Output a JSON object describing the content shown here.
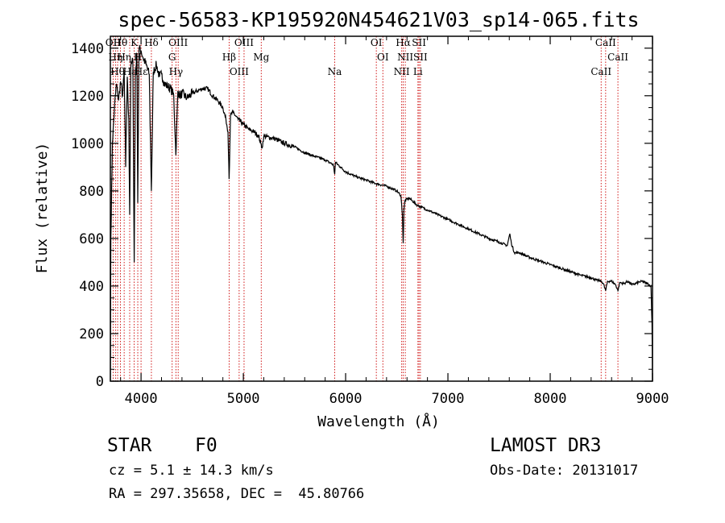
{
  "chart_data": {
    "type": "line",
    "title": "spec-56583-KP195920N454621V03_sp14-065.fits",
    "xlabel": "Wavelength (Å)",
    "ylabel": "Flux (relative)",
    "xlim": [
      3700,
      9000
    ],
    "ylim": [
      0,
      1450
    ],
    "xticks": [
      4000,
      5000,
      6000,
      7000,
      8000,
      9000
    ],
    "yticks": [
      0,
      200,
      400,
      600,
      800,
      1000,
      1200,
      1400
    ],
    "series": [
      {
        "name": "spectrum",
        "x": [
          3700,
          3705,
          3720,
          3740,
          3760,
          3780,
          3800,
          3820,
          3835,
          3850,
          3865,
          3880,
          3889,
          3900,
          3920,
          3933,
          3945,
          3960,
          3968,
          3980,
          4000,
          4020,
          4050,
          4080,
          4101,
          4120,
          4150,
          4180,
          4200,
          4230,
          4260,
          4290,
          4320,
          4340,
          4360,
          4380,
          4400,
          4450,
          4500,
          4550,
          4600,
          4650,
          4700,
          4750,
          4800,
          4830,
          4850,
          4861,
          4875,
          4900,
          4950,
          5000,
          5050,
          5100,
          5150,
          5170,
          5183,
          5200,
          5300,
          5400,
          5500,
          5600,
          5700,
          5800,
          5880,
          5893,
          5900,
          5950,
          6000,
          6100,
          6200,
          6300,
          6400,
          6500,
          6540,
          6555,
          6563,
          6570,
          6580,
          6620,
          6700,
          6800,
          6900,
          7000,
          7100,
          7200,
          7300,
          7400,
          7500,
          7580,
          7605,
          7620,
          7650,
          7700,
          7800,
          7900,
          8000,
          8100,
          8200,
          8300,
          8400,
          8450,
          8500,
          8520,
          8542,
          8560,
          8600,
          8640,
          8662,
          8680,
          8720,
          8760,
          8800,
          8860,
          8900,
          8950,
          8985,
          8995,
          9000
        ],
        "y": [
          0,
          600,
          1000,
          1150,
          1250,
          1180,
          1260,
          1200,
          1300,
          900,
          1280,
          1100,
          700,
          1320,
          1350,
          500,
          1300,
          1380,
          750,
          1400,
          1390,
          1360,
          1330,
          1290,
          800,
          1300,
          1330,
          1280,
          1290,
          1250,
          1240,
          1230,
          1200,
          950,
          1220,
          1200,
          1210,
          1190,
          1210,
          1220,
          1230,
          1230,
          1200,
          1180,
          1150,
          1100,
          1050,
          850,
          1120,
          1130,
          1100,
          1080,
          1060,
          1050,
          1030,
          1000,
          980,
          1030,
          1020,
          1000,
          985,
          960,
          945,
          930,
          910,
          870,
          920,
          900,
          880,
          860,
          845,
          830,
          820,
          800,
          780,
          700,
          580,
          720,
          760,
          770,
          740,
          720,
          700,
          680,
          660,
          640,
          620,
          600,
          585,
          570,
          620,
          580,
          540,
          540,
          520,
          505,
          490,
          475,
          460,
          445,
          435,
          425,
          420,
          410,
          380,
          420,
          420,
          405,
          380,
          415,
          410,
          420,
          405,
          415,
          420,
          410,
          400,
          240,
          0
        ]
      }
    ],
    "line_markers": [
      {
        "wl": 3727,
        "label": "OII"
      },
      {
        "wl": 3750,
        "label": "Hη"
      },
      {
        "wl": 3771,
        "label": "Hθ"
      },
      {
        "wl": 3798,
        "label": "Hθ"
      },
      {
        "wl": 3835,
        "label": "Hη"
      },
      {
        "wl": 3889,
        "label": "Hε"
      },
      {
        "wl": 3933,
        "label": "K"
      },
      {
        "wl": 3968,
        "label": "H"
      },
      {
        "wl": 4000,
        "label": "Hε"
      },
      {
        "wl": 4101,
        "label": "Hδ"
      },
      {
        "wl": 4304,
        "label": "G"
      },
      {
        "wl": 4341,
        "label": "Hγ"
      },
      {
        "wl": 4363,
        "label": "OIII"
      },
      {
        "wl": 4861,
        "label": "Hβ"
      },
      {
        "wl": 4959,
        "label": "OIII"
      },
      {
        "wl": 5007,
        "label": "OIII"
      },
      {
        "wl": 5175,
        "label": "Mg"
      },
      {
        "wl": 5893,
        "label": "Na"
      },
      {
        "wl": 6300,
        "label": "OI"
      },
      {
        "wl": 6364,
        "label": "OI"
      },
      {
        "wl": 6548,
        "label": "NII"
      },
      {
        "wl": 6563,
        "label": "Hα"
      },
      {
        "wl": 6583,
        "label": "NII"
      },
      {
        "wl": 6707,
        "label": "Li"
      },
      {
        "wl": 6717,
        "label": "SII"
      },
      {
        "wl": 6731,
        "label": "SII"
      },
      {
        "wl": 8498,
        "label": "CaII"
      },
      {
        "wl": 8542,
        "label": "CaII"
      },
      {
        "wl": 8662,
        "label": "CaII"
      }
    ]
  },
  "info": {
    "object_class": "STAR",
    "subclass": "F0",
    "survey": "LAMOST DR3",
    "cz": "cz = 5.1 ± 14.3 km/s",
    "obs_date": "Obs-Date: 20131017",
    "coords": "RA = 297.35658, DEC =  45.80766"
  },
  "colors": {
    "line": "#000000",
    "marker": "#cc0000"
  }
}
